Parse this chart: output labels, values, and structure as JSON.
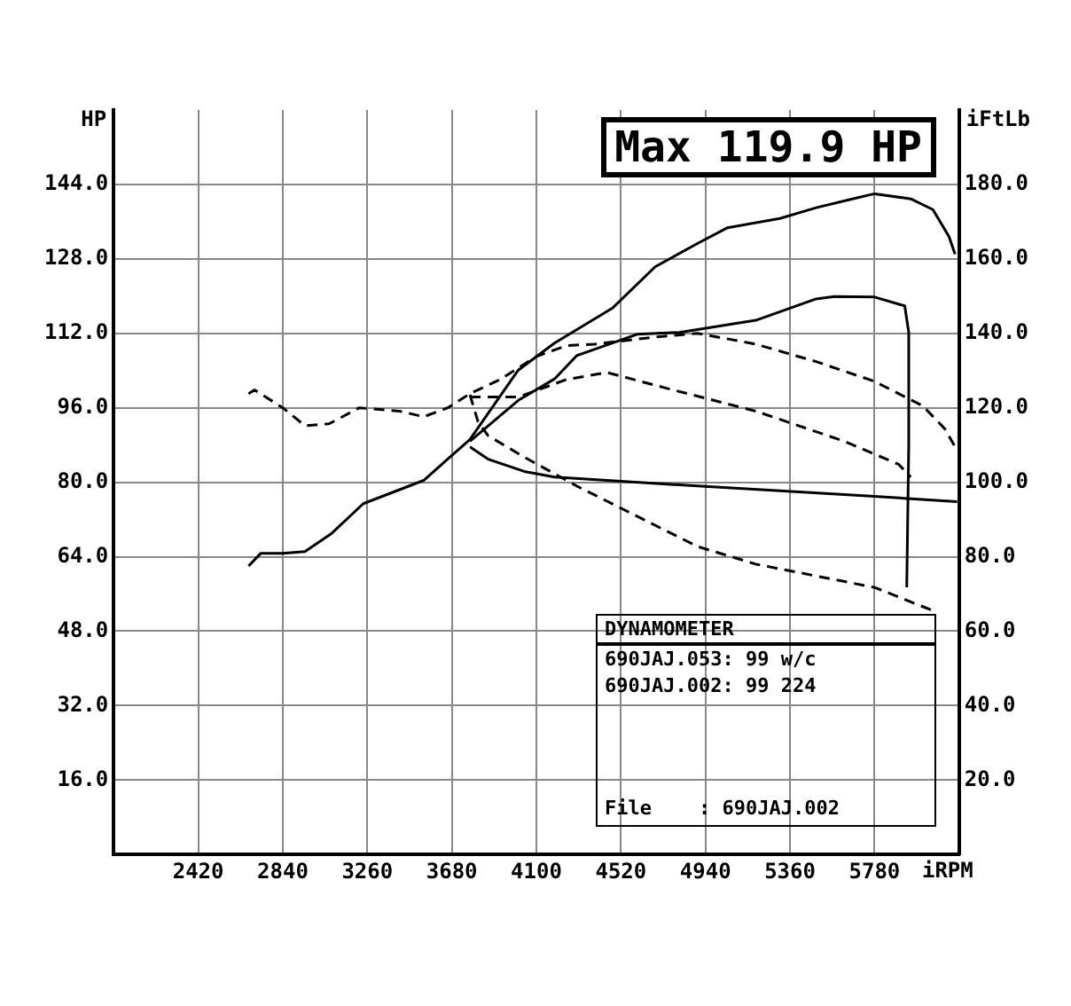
{
  "chart_data": {
    "type": "line",
    "title": "Max 119.9 HP",
    "xlabel": "iRPM",
    "ylabel": "HP",
    "y2label": "iFtLb",
    "xlim": [
      2000,
      6200
    ],
    "xticks": [
      2420,
      2840,
      3260,
      3680,
      4100,
      4520,
      4940,
      5360,
      5780
    ],
    "ylim": [
      0,
      160
    ],
    "yticks": [
      {
        "value": 16,
        "label": "16.0"
      },
      {
        "value": 32,
        "label": "32.0"
      },
      {
        "value": 48,
        "label": "48.0"
      },
      {
        "value": 64,
        "label": "64.0"
      },
      {
        "value": 80,
        "label": "80.0"
      },
      {
        "value": 96,
        "label": "96.0"
      },
      {
        "value": 112,
        "label": "112.0"
      },
      {
        "value": 128,
        "label": "128.0"
      },
      {
        "value": 144,
        "label": "144.0"
      }
    ],
    "y2lim": [
      0,
      200
    ],
    "y2ticks": [
      {
        "value": 20,
        "label": "20.0"
      },
      {
        "value": 40,
        "label": "40.0"
      },
      {
        "value": 60,
        "label": "60.0"
      },
      {
        "value": 80,
        "label": "80.0"
      },
      {
        "value": 100,
        "label": "100.0"
      },
      {
        "value": 120,
        "label": "120.0"
      },
      {
        "value": 140,
        "label": "140.0"
      },
      {
        "value": 160,
        "label": "160.0"
      },
      {
        "value": 180,
        "label": "180.0"
      }
    ],
    "grid": true,
    "legend": false,
    "annotations": [
      "DYNAMOMETER",
      "690JAJ.053: 99 w/c",
      "690JAJ.002: 99 224",
      "File    : 690JAJ.002"
    ],
    "series": [
      {
        "color": "#000000",
        "line_style": "solid",
        "x": [
          2670,
          2730,
          2840,
          2950,
          3080,
          3240,
          3540,
          3770,
          4010,
          4190,
          4480,
          4690,
          4900,
          5050,
          5310,
          5490,
          5670,
          5780,
          5960,
          6070,
          6150,
          6180
        ],
        "values": [
          62,
          64.7,
          64.7,
          65.1,
          68.9,
          75.4,
          80.4,
          89.2,
          104.1,
          109.9,
          117.5,
          126.3,
          131.3,
          134.7,
          136.7,
          139,
          140.9,
          142,
          140.9,
          138.6,
          132.8,
          129
        ]
      },
      {
        "color": "#000000",
        "line_style": "solid",
        "x": [
          3770,
          4010,
          4190,
          4300,
          4600,
          4810,
          5190,
          5490,
          5580,
          5780,
          5930,
          5950,
          5950,
          5940
        ],
        "values": [
          88.8,
          97.6,
          102.2,
          107.2,
          111.8,
          112.2,
          114.8,
          119.4,
          119.9,
          119.8,
          117.9,
          112.2,
          88,
          57.4
        ]
      },
      {
        "color": "#000000",
        "line_style": "solid",
        "axis": "y2",
        "x": [
          3770,
          3860,
          4040,
          4190,
          4900,
          5780,
          6190
        ],
        "values": [
          109.5,
          106.2,
          102.9,
          101.4,
          99,
          96.2,
          94.8
        ]
      },
      {
        "color": "#000000",
        "line_style": "dashed",
        "axis": "y2",
        "x": [
          2670,
          2700,
          2840,
          2950,
          3070,
          3220,
          3420,
          3540,
          3660,
          3770,
          3920,
          4100,
          4250,
          4390,
          4690,
          4900,
          5190,
          5490,
          5780,
          6020,
          6130,
          6180
        ],
        "values": [
          123.8,
          124.8,
          120,
          115.2,
          115.7,
          120,
          119.1,
          117.6,
          120,
          123.8,
          127.6,
          133.8,
          136.7,
          137.1,
          139,
          140,
          137.1,
          132.4,
          127.1,
          120.5,
          114.3,
          109.5
        ]
      },
      {
        "color": "#000000",
        "line_style": "dashed",
        "axis": "y2",
        "x": [
          3770,
          4010,
          4250,
          4450,
          4750,
          5190,
          5630,
          5900,
          5960
        ],
        "values": [
          122.9,
          122.9,
          127.6,
          129.5,
          125.2,
          119.1,
          111,
          104.8,
          101.4
        ]
      },
      {
        "color": "#000000",
        "line_style": "dashed",
        "x": [
          3770,
          3810,
          3860,
          4040,
          4300,
          4600,
          4900,
          5190,
          5780,
          6070
        ],
        "values": [
          98.8,
          93,
          90,
          85.4,
          79.2,
          72.7,
          66.2,
          62.4,
          57.4,
          52.4
        ]
      }
    ]
  }
}
